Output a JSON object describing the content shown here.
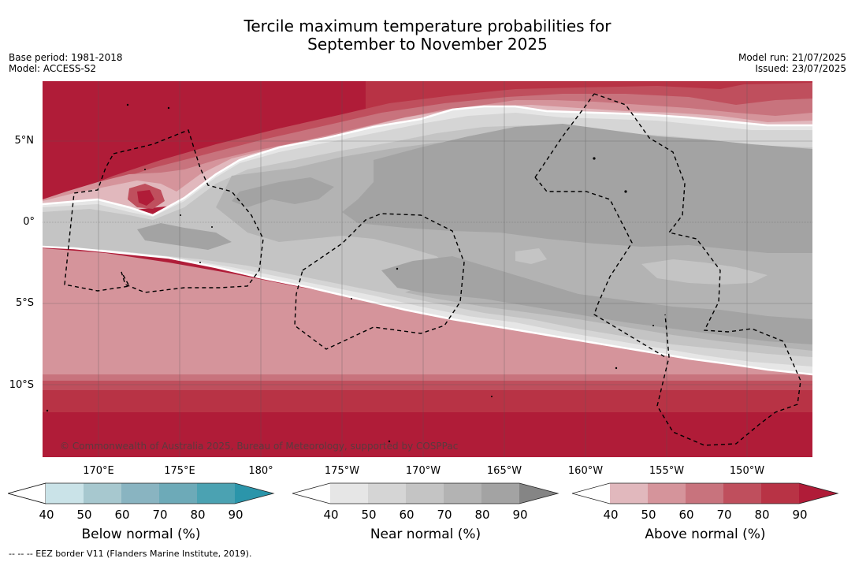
{
  "title_line1": "Tercile maximum temperature probabilities for",
  "title_line2": "September to November 2025",
  "base_period": "Base period: 1981-2018",
  "model": "Model: ACCESS-S2",
  "model_run": "Model run: 21/07/2025",
  "issued": "Issued: 23/07/2025",
  "lat_labels": [
    "5°N",
    "0°",
    "5°S",
    "10°S"
  ],
  "lon_labels": [
    "170°E",
    "175°E",
    "180°",
    "175°W",
    "170°W",
    "165°W",
    "160°W",
    "155°W",
    "150°W"
  ],
  "copyright": "© Commonwealth of Australia 2025, Bureau of Meteorology, supported by COSPPac",
  "colorbars": [
    {
      "title": "Below normal (%)",
      "ticks": [
        "40",
        "50",
        "60",
        "70",
        "80",
        "90"
      ],
      "colors": [
        "#ffffff",
        "#cae3e8",
        "#a7c8cf",
        "#89b4c1",
        "#6daab8",
        "#4ba2b2",
        "#2b95aa"
      ]
    },
    {
      "title": "Near normal (%)",
      "ticks": [
        "40",
        "50",
        "60",
        "70",
        "80",
        "90"
      ],
      "colors": [
        "#ffffff",
        "#e6e6e6",
        "#d5d5d5",
        "#c4c4c4",
        "#b3b3b3",
        "#a3a3a3",
        "#858585"
      ]
    },
    {
      "title": "Above normal (%)",
      "ticks": [
        "40",
        "50",
        "60",
        "70",
        "80",
        "90"
      ],
      "colors": [
        "#ffffff",
        "#e1b8bd",
        "#d5949b",
        "#c8737d",
        "#bf4f5d",
        "#b83345",
        "#b01c38"
      ]
    }
  ],
  "footer": "-- -- -- EEZ border V11 (Flanders Marine Institute, 2019)."
}
